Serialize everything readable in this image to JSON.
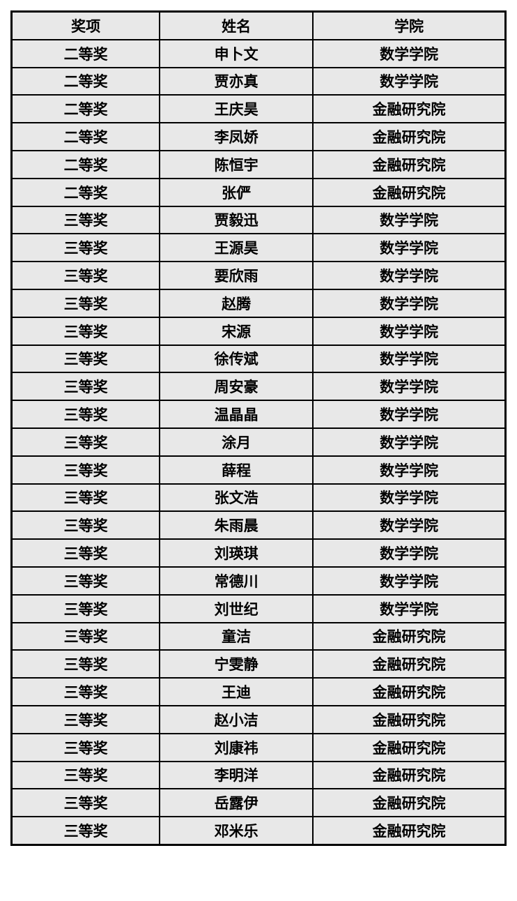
{
  "table": {
    "headers": [
      "奖项",
      "姓名",
      "学院"
    ],
    "rows": [
      [
        "二等奖",
        "申卜文",
        "数学学院"
      ],
      [
        "二等奖",
        "贾亦真",
        "数学学院"
      ],
      [
        "二等奖",
        "王庆昊",
        "金融研究院"
      ],
      [
        "二等奖",
        "李凤娇",
        "金融研究院"
      ],
      [
        "二等奖",
        "陈恒宇",
        "金融研究院"
      ],
      [
        "二等奖",
        "张俨",
        "金融研究院"
      ],
      [
        "三等奖",
        "贾毅迅",
        "数学学院"
      ],
      [
        "三等奖",
        "王源昊",
        "数学学院"
      ],
      [
        "三等奖",
        "要欣雨",
        "数学学院"
      ],
      [
        "三等奖",
        "赵腾",
        "数学学院"
      ],
      [
        "三等奖",
        "宋源",
        "数学学院"
      ],
      [
        "三等奖",
        "徐传斌",
        "数学学院"
      ],
      [
        "三等奖",
        "周安豪",
        "数学学院"
      ],
      [
        "三等奖",
        "温晶晶",
        "数学学院"
      ],
      [
        "三等奖",
        "涂月",
        "数学学院"
      ],
      [
        "三等奖",
        "薛程",
        "数学学院"
      ],
      [
        "三等奖",
        "张文浩",
        "数学学院"
      ],
      [
        "三等奖",
        "朱雨晨",
        "数学学院"
      ],
      [
        "三等奖",
        "刘瑛琪",
        "数学学院"
      ],
      [
        "三等奖",
        "常德川",
        "数学学院"
      ],
      [
        "三等奖",
        "刘世纪",
        "数学学院"
      ],
      [
        "三等奖",
        "童洁",
        "金融研究院"
      ],
      [
        "三等奖",
        "宁雯静",
        "金融研究院"
      ],
      [
        "三等奖",
        "王迪",
        "金融研究院"
      ],
      [
        "三等奖",
        "赵小洁",
        "金融研究院"
      ],
      [
        "三等奖",
        "刘康祎",
        "金融研究院"
      ],
      [
        "三等奖",
        "李明洋",
        "金融研究院"
      ],
      [
        "三等奖",
        "岳露伊",
        "金融研究院"
      ],
      [
        "三等奖",
        "邓米乐",
        "金融研究院"
      ]
    ]
  },
  "colors": {
    "cell_background": "#e8e8e8",
    "border": "#000000",
    "text": "#000000",
    "page_background": "#ffffff"
  }
}
